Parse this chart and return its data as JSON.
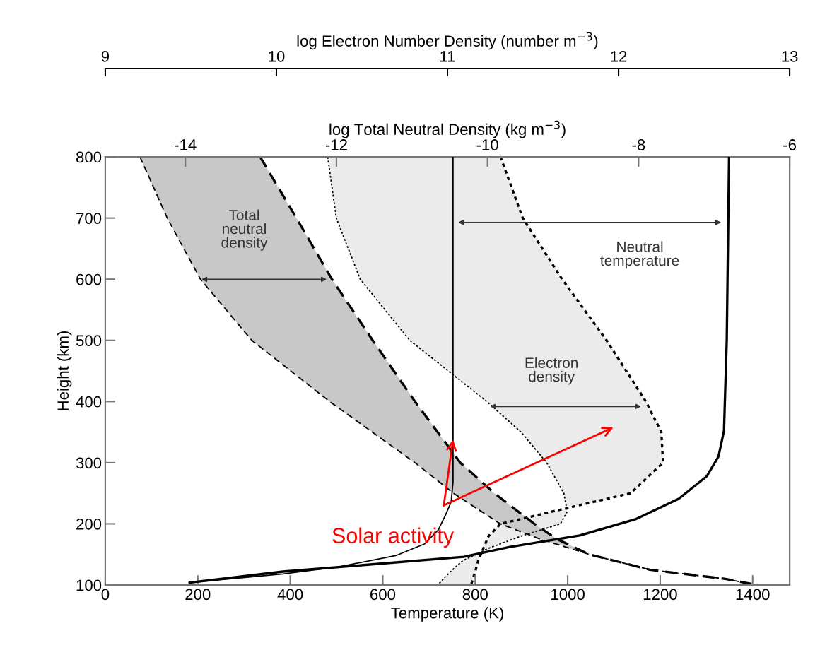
{
  "chart_data": [
    {
      "type": "line",
      "xlabel": "log Electron Number Density (number m$^{−3}$)",
      "xlim": [
        9,
        13
      ],
      "xticks": [
        9,
        10,
        11,
        12,
        13
      ],
      "ylim": [
        100,
        800
      ],
      "tick_labels": "x",
      "legend": false,
      "series": [
        {
          "color": "#000000",
          "line_style": "dotted",
          "values": [
            800,
            700,
            600,
            500,
            400,
            350,
            300,
            250,
            220,
            200,
            180,
            160,
            140,
            120,
            102
          ],
          "x": [
            10.3,
            10.35,
            10.49,
            10.78,
            11.23,
            11.43,
            11.58,
            11.68,
            11.7,
            11.66,
            11.43,
            11.24,
            11.09,
            11.01,
            10.95
          ]
        },
        {
          "color": "#000000",
          "line_style": "dotted",
          "values": [
            800,
            700,
            600,
            500,
            400,
            350,
            300,
            250,
            220,
            200,
            180,
            160,
            140,
            120,
            102
          ],
          "x": [
            11.31,
            11.44,
            11.67,
            11.93,
            12.16,
            12.25,
            12.26,
            12.07,
            11.61,
            11.31,
            11.24,
            11.21,
            11.18,
            11.16,
            11.14
          ]
        }
      ]
    },
    {
      "type": "line",
      "xlabel": "Temperature (K)",
      "ylabel": "Height (km)",
      "x2label": "log Total Neutral Density (kg m$^{−3}$)",
      "xlim": [
        0,
        1480
      ],
      "xticks": [
        0,
        200,
        400,
        600,
        800,
        1000,
        1200,
        1400
      ],
      "x2lim": [
        -15.06,
        -6
      ],
      "x2ticks": [
        -14,
        -12,
        -10,
        -8,
        -6
      ],
      "ylim": [
        100,
        800
      ],
      "yticks": [
        100,
        200,
        300,
        400,
        500,
        600,
        700,
        800
      ],
      "grid": false,
      "legend": false,
      "series": [
        {
          "axis": "x2",
          "color": "#000000",
          "line_style": "dashed",
          "values": [
            800,
            700,
            600,
            500,
            400,
            300,
            250,
            200,
            175,
            150,
            125,
            110,
            100
          ],
          "x": [
            -14.6,
            -14.24,
            -13.8,
            -13.12,
            -12.09,
            -10.96,
            -10.45,
            -9.83,
            -9.3,
            -8.65,
            -7.85,
            -6.85,
            -6.43
          ]
        },
        {
          "axis": "x2",
          "color": "#000000",
          "line_style": "dashed",
          "values": [
            800,
            700,
            600,
            500,
            400,
            300,
            250,
            200,
            175,
            150,
            125,
            110,
            100
          ],
          "x": [
            -13.01,
            -12.53,
            -12.06,
            -11.52,
            -10.96,
            -10.36,
            -9.91,
            -9.38,
            -9.08,
            -8.65,
            -7.85,
            -6.85,
            -6.43
          ]
        },
        {
          "color": "#000000",
          "line_style": "solid",
          "values": [
            800,
            268,
            236,
            213,
            190,
            167,
            148,
            130,
            118,
            104
          ],
          "x": [
            752,
            752,
            748,
            735,
            720,
            690,
            628,
            506,
            384,
            182
          ]
        },
        {
          "color": "#000000",
          "line_style": "solid",
          "values": [
            800,
            500,
            352,
            310,
            278,
            241,
            208,
            181,
            162,
            146,
            122,
            104
          ],
          "x": [
            1349,
            1344,
            1338,
            1326,
            1301,
            1240,
            1148,
            1026,
            873,
            775,
            384,
            182
          ]
        }
      ],
      "annotations": [
        "Total\nneutral\ndensity",
        "Neutral\ntemperature",
        "Electron\ndensity",
        {
          "text": "Solar activity",
          "x": 752,
          "y": 338
        }
      ]
    }
  ]
}
